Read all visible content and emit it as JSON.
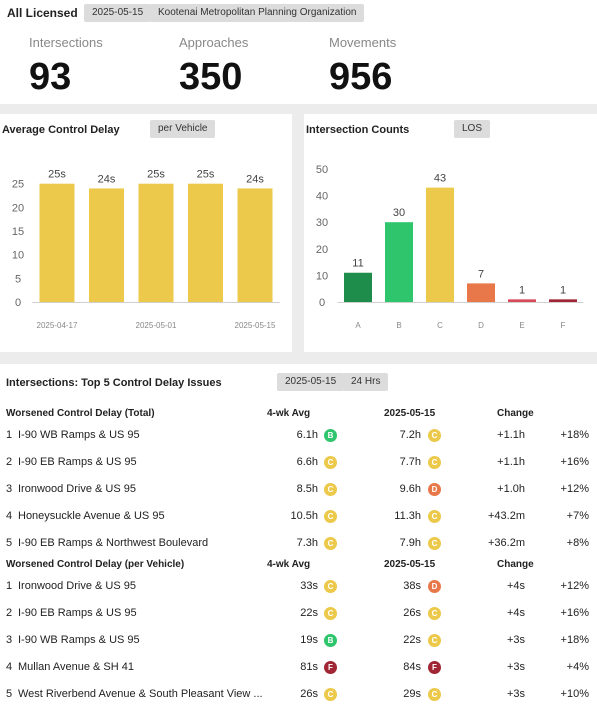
{
  "header": {
    "title": "All Licensed",
    "date_chip": "2025-05-15",
    "org_chip": "Kootenai Metropolitan Planning Organization"
  },
  "kpis": [
    {
      "label": "Intersections",
      "value": "93"
    },
    {
      "label": "Approaches",
      "value": "350"
    },
    {
      "label": "Movements",
      "value": "956"
    }
  ],
  "delay_chart": {
    "title": "Average Control Delay",
    "chip": "per Vehicle"
  },
  "los_chart": {
    "title": "Intersection Counts",
    "chip": "LOS"
  },
  "los_colors": {
    "A": "#1e8c4a",
    "B": "#2ec56c",
    "C": "#ecc94b",
    "D": "#e8784a",
    "E": "#d84a5a",
    "F": "#a02636"
  },
  "chart_data": [
    {
      "type": "bar",
      "title": "Average Control Delay",
      "categories": [
        "2025-04-17",
        "",
        "2025-05-01",
        "",
        "2025-05-15"
      ],
      "values": [
        25,
        24,
        25,
        25,
        24
      ],
      "data_labels": [
        "25s",
        "24s",
        "25s",
        "25s",
        "24s"
      ],
      "yticks": [
        0,
        5,
        10,
        15,
        20,
        25
      ],
      "ylim": [
        0,
        28
      ],
      "color": "#ecc94b",
      "grid": false
    },
    {
      "type": "bar",
      "title": "Intersection Counts",
      "categories": [
        "A",
        "B",
        "C",
        "D",
        "E",
        "F"
      ],
      "values": [
        11,
        30,
        43,
        7,
        1,
        1
      ],
      "data_labels": [
        "11",
        "30",
        "43",
        "7",
        "1",
        "1"
      ],
      "yticks": [
        0,
        10,
        20,
        30,
        40,
        50
      ],
      "ylim": [
        0,
        50
      ],
      "grid": false
    }
  ],
  "issues": {
    "title": "Intersections: Top 5 Control Delay Issues",
    "date_chip": "2025-05-15",
    "period_chip": "24 Hrs",
    "sections": [
      {
        "header": "Worsened Control Delay (Total)",
        "col_avg": "4-wk Avg",
        "col_date": "2025-05-15",
        "col_change": "Change",
        "rows": [
          {
            "rank": "1",
            "name": "I-90 WB Ramps & US 95",
            "avg": "6.1h",
            "avg_los": "B",
            "cur": "7.2h",
            "cur_los": "C",
            "change": "+1.1h",
            "pct": "+18%"
          },
          {
            "rank": "2",
            "name": "I-90 EB Ramps & US 95",
            "avg": "6.6h",
            "avg_los": "C",
            "cur": "7.7h",
            "cur_los": "C",
            "change": "+1.1h",
            "pct": "+16%"
          },
          {
            "rank": "3",
            "name": "Ironwood Drive & US 95",
            "avg": "8.5h",
            "avg_los": "C",
            "cur": "9.6h",
            "cur_los": "D",
            "change": "+1.0h",
            "pct": "+12%"
          },
          {
            "rank": "4",
            "name": "Honeysuckle Avenue & US 95",
            "avg": "10.5h",
            "avg_los": "C",
            "cur": "11.3h",
            "cur_los": "C",
            "change": "+43.2m",
            "pct": "+7%"
          },
          {
            "rank": "5",
            "name": "I-90 EB Ramps & Northwest Boulevard",
            "avg": "7.3h",
            "avg_los": "C",
            "cur": "7.9h",
            "cur_los": "C",
            "change": "+36.2m",
            "pct": "+8%"
          }
        ]
      },
      {
        "header": "Worsened Control Delay (per Vehicle)",
        "col_avg": "4-wk Avg",
        "col_date": "2025-05-15",
        "col_change": "Change",
        "rows": [
          {
            "rank": "1",
            "name": "Ironwood Drive & US 95",
            "avg": "33s",
            "avg_los": "C",
            "cur": "38s",
            "cur_los": "D",
            "change": "+4s",
            "pct": "+12%"
          },
          {
            "rank": "2",
            "name": "I-90 EB Ramps & US 95",
            "avg": "22s",
            "avg_los": "C",
            "cur": "26s",
            "cur_los": "C",
            "change": "+4s",
            "pct": "+16%"
          },
          {
            "rank": "3",
            "name": "I-90 WB Ramps & US 95",
            "avg": "19s",
            "avg_los": "B",
            "cur": "22s",
            "cur_los": "C",
            "change": "+3s",
            "pct": "+18%"
          },
          {
            "rank": "4",
            "name": "Mullan Avenue & SH 41",
            "avg": "81s",
            "avg_los": "F",
            "cur": "84s",
            "cur_los": "F",
            "change": "+3s",
            "pct": "+4%"
          },
          {
            "rank": "5",
            "name": "West Riverbend Avenue & South Pleasant View ...",
            "avg": "26s",
            "avg_los": "C",
            "cur": "29s",
            "cur_los": "C",
            "change": "+3s",
            "pct": "+10%"
          }
        ]
      }
    ]
  }
}
